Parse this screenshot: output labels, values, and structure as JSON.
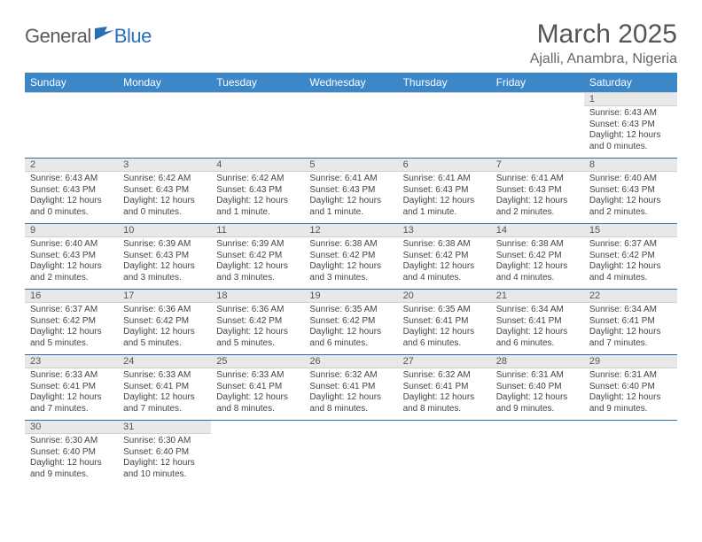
{
  "logo": {
    "text1": "General",
    "text2": "Blue"
  },
  "title": "March 2025",
  "location": "Ajalli, Anambra, Nigeria",
  "weekday_header_bg": "#3b87c8",
  "weekday_header_fg": "#ffffff",
  "daynum_bg": "#e8e8e8",
  "cell_bottom_border": "#2a6fb5",
  "weekdays": [
    "Sunday",
    "Monday",
    "Tuesday",
    "Wednesday",
    "Thursday",
    "Friday",
    "Saturday"
  ],
  "weeks": [
    [
      null,
      null,
      null,
      null,
      null,
      null,
      {
        "n": "1",
        "sr": "6:43 AM",
        "ss": "6:43 PM",
        "dl": "12 hours and 0 minutes."
      }
    ],
    [
      {
        "n": "2",
        "sr": "6:43 AM",
        "ss": "6:43 PM",
        "dl": "12 hours and 0 minutes."
      },
      {
        "n": "3",
        "sr": "6:42 AM",
        "ss": "6:43 PM",
        "dl": "12 hours and 0 minutes."
      },
      {
        "n": "4",
        "sr": "6:42 AM",
        "ss": "6:43 PM",
        "dl": "12 hours and 1 minute."
      },
      {
        "n": "5",
        "sr": "6:41 AM",
        "ss": "6:43 PM",
        "dl": "12 hours and 1 minute."
      },
      {
        "n": "6",
        "sr": "6:41 AM",
        "ss": "6:43 PM",
        "dl": "12 hours and 1 minute."
      },
      {
        "n": "7",
        "sr": "6:41 AM",
        "ss": "6:43 PM",
        "dl": "12 hours and 2 minutes."
      },
      {
        "n": "8",
        "sr": "6:40 AM",
        "ss": "6:43 PM",
        "dl": "12 hours and 2 minutes."
      }
    ],
    [
      {
        "n": "9",
        "sr": "6:40 AM",
        "ss": "6:43 PM",
        "dl": "12 hours and 2 minutes."
      },
      {
        "n": "10",
        "sr": "6:39 AM",
        "ss": "6:43 PM",
        "dl": "12 hours and 3 minutes."
      },
      {
        "n": "11",
        "sr": "6:39 AM",
        "ss": "6:42 PM",
        "dl": "12 hours and 3 minutes."
      },
      {
        "n": "12",
        "sr": "6:38 AM",
        "ss": "6:42 PM",
        "dl": "12 hours and 3 minutes."
      },
      {
        "n": "13",
        "sr": "6:38 AM",
        "ss": "6:42 PM",
        "dl": "12 hours and 4 minutes."
      },
      {
        "n": "14",
        "sr": "6:38 AM",
        "ss": "6:42 PM",
        "dl": "12 hours and 4 minutes."
      },
      {
        "n": "15",
        "sr": "6:37 AM",
        "ss": "6:42 PM",
        "dl": "12 hours and 4 minutes."
      }
    ],
    [
      {
        "n": "16",
        "sr": "6:37 AM",
        "ss": "6:42 PM",
        "dl": "12 hours and 5 minutes."
      },
      {
        "n": "17",
        "sr": "6:36 AM",
        "ss": "6:42 PM",
        "dl": "12 hours and 5 minutes."
      },
      {
        "n": "18",
        "sr": "6:36 AM",
        "ss": "6:42 PM",
        "dl": "12 hours and 5 minutes."
      },
      {
        "n": "19",
        "sr": "6:35 AM",
        "ss": "6:42 PM",
        "dl": "12 hours and 6 minutes."
      },
      {
        "n": "20",
        "sr": "6:35 AM",
        "ss": "6:41 PM",
        "dl": "12 hours and 6 minutes."
      },
      {
        "n": "21",
        "sr": "6:34 AM",
        "ss": "6:41 PM",
        "dl": "12 hours and 6 minutes."
      },
      {
        "n": "22",
        "sr": "6:34 AM",
        "ss": "6:41 PM",
        "dl": "12 hours and 7 minutes."
      }
    ],
    [
      {
        "n": "23",
        "sr": "6:33 AM",
        "ss": "6:41 PM",
        "dl": "12 hours and 7 minutes."
      },
      {
        "n": "24",
        "sr": "6:33 AM",
        "ss": "6:41 PM",
        "dl": "12 hours and 7 minutes."
      },
      {
        "n": "25",
        "sr": "6:33 AM",
        "ss": "6:41 PM",
        "dl": "12 hours and 8 minutes."
      },
      {
        "n": "26",
        "sr": "6:32 AM",
        "ss": "6:41 PM",
        "dl": "12 hours and 8 minutes."
      },
      {
        "n": "27",
        "sr": "6:32 AM",
        "ss": "6:41 PM",
        "dl": "12 hours and 8 minutes."
      },
      {
        "n": "28",
        "sr": "6:31 AM",
        "ss": "6:40 PM",
        "dl": "12 hours and 9 minutes."
      },
      {
        "n": "29",
        "sr": "6:31 AM",
        "ss": "6:40 PM",
        "dl": "12 hours and 9 minutes."
      }
    ],
    [
      {
        "n": "30",
        "sr": "6:30 AM",
        "ss": "6:40 PM",
        "dl": "12 hours and 9 minutes."
      },
      {
        "n": "31",
        "sr": "6:30 AM",
        "ss": "6:40 PM",
        "dl": "12 hours and 10 minutes."
      },
      null,
      null,
      null,
      null,
      null
    ]
  ],
  "labels": {
    "sunrise": "Sunrise:",
    "sunset": "Sunset:",
    "daylight": "Daylight:"
  }
}
